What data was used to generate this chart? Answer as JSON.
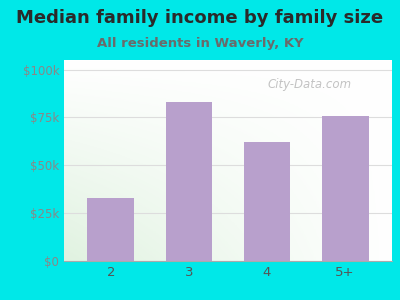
{
  "title": "Median family income by family size",
  "subtitle": "All residents in Waverly, KY",
  "categories": [
    "2",
    "3",
    "4",
    "5+"
  ],
  "values": [
    33000,
    83000,
    62000,
    76000
  ],
  "bar_color": "#b8a0cc",
  "background_color": "#00e8e8",
  "title_color": "#2a2a2a",
  "subtitle_color": "#6a6a6a",
  "axis_label_color": "#888888",
  "tick_label_color": "#777777",
  "xtick_label_color": "#555555",
  "yticks": [
    0,
    25000,
    50000,
    75000,
    100000
  ],
  "ytick_labels": [
    "$0",
    "$25k",
    "$50k",
    "$75k",
    "$100k"
  ],
  "ylim": [
    0,
    105000
  ],
  "title_fontsize": 13,
  "subtitle_fontsize": 9.5,
  "watermark": "City-Data.com",
  "watermark_color": "#aaaaaa",
  "grid_color": "#dddddd",
  "plot_bg_left": "#d8edd8",
  "plot_bg_right": "#f8f8f4"
}
